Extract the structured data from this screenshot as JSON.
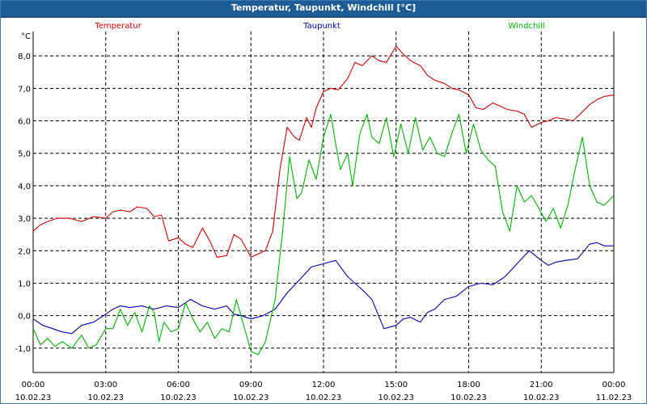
{
  "window": {
    "title": "Temperatur, Taupunkt, Windchill [°C]"
  },
  "chart_data": {
    "type": "line",
    "title": "Temperatur, Taupunkt, Windchill [°C]",
    "ylabel": "°C",
    "ylim": [
      -1.75,
      8.75
    ],
    "xlim": [
      0,
      24
    ],
    "grid": true,
    "y_ticks": [
      "8,0",
      "7,0",
      "6,0",
      "5,0",
      "4,0",
      "3,0",
      "2,0",
      "1,0",
      "0,0",
      "-1,0"
    ],
    "y_tick_values": [
      8,
      7,
      6,
      5,
      4,
      3,
      2,
      1,
      0,
      -1
    ],
    "x_ticks": [
      {
        "time": "00:00",
        "date": "10.02.23",
        "hour": 0
      },
      {
        "time": "03:00",
        "date": "10.02.23",
        "hour": 3
      },
      {
        "time": "06:00",
        "date": "10.02.23",
        "hour": 6
      },
      {
        "time": "09:00",
        "date": "10.02.23",
        "hour": 9
      },
      {
        "time": "12:00",
        "date": "10.02.23",
        "hour": 12
      },
      {
        "time": "15:00",
        "date": "10.02.23",
        "hour": 15
      },
      {
        "time": "18:00",
        "date": "10.02.23",
        "hour": 18
      },
      {
        "time": "21:00",
        "date": "10.02.23",
        "hour": 21
      },
      {
        "time": "00:00",
        "date": "11.02.23",
        "hour": 24
      }
    ],
    "series": [
      {
        "name": "Temperatur",
        "color": "#d40000",
        "x": [
          0,
          0.3,
          0.6,
          1,
          1.5,
          2,
          2.5,
          3,
          3.3,
          3.6,
          4,
          4.3,
          4.7,
          5,
          5.3,
          5.6,
          6,
          6.3,
          6.6,
          7,
          7.3,
          7.6,
          8,
          8.3,
          8.6,
          9,
          9.3,
          9.6,
          9.9,
          10.2,
          10.5,
          10.8,
          11,
          11.3,
          11.5,
          11.7,
          12,
          12.3,
          12.6,
          13,
          13.3,
          13.6,
          14,
          14.3,
          14.6,
          15,
          15.3,
          15.6,
          16,
          16.3,
          16.6,
          17,
          17.3,
          17.6,
          18,
          18.3,
          18.6,
          19,
          19.3,
          19.6,
          20,
          20.3,
          20.6,
          21,
          21.3,
          21.6,
          22,
          22.3,
          22.6,
          23,
          23.3,
          23.6,
          24
        ],
        "values": [
          2.6,
          2.8,
          2.9,
          3.0,
          3.0,
          2.9,
          3.05,
          3.0,
          3.2,
          3.25,
          3.2,
          3.35,
          3.3,
          3.05,
          3.1,
          2.3,
          2.4,
          2.2,
          2.1,
          2.7,
          2.3,
          1.8,
          1.85,
          2.5,
          2.35,
          1.8,
          1.9,
          2.0,
          2.6,
          4.5,
          5.8,
          5.5,
          5.4,
          6.1,
          5.8,
          6.4,
          6.9,
          7.0,
          6.95,
          7.3,
          7.8,
          7.7,
          8.0,
          7.85,
          7.8,
          8.3,
          8.05,
          7.85,
          7.7,
          7.4,
          7.25,
          7.15,
          7.0,
          6.95,
          6.8,
          6.4,
          6.35,
          6.55,
          6.45,
          6.35,
          6.3,
          6.2,
          5.8,
          5.95,
          6.0,
          6.1,
          6.05,
          6.0,
          6.2,
          6.5,
          6.65,
          6.75,
          6.8
        ]
      },
      {
        "name": "Taupunkt",
        "color": "#0000b4",
        "x": [
          0,
          0.4,
          0.8,
          1.2,
          1.6,
          2,
          2.5,
          3,
          3.3,
          3.6,
          4,
          4.5,
          5,
          5.5,
          6,
          6.5,
          7,
          7.5,
          8,
          8.3,
          8.6,
          9,
          9.5,
          10,
          10.5,
          11,
          11.5,
          12,
          12.5,
          13,
          13.3,
          13.6,
          14,
          14.5,
          15,
          15.3,
          15.6,
          16,
          16.3,
          16.6,
          17,
          17.5,
          18,
          18.5,
          19,
          19.5,
          20,
          20.5,
          21,
          21.3,
          21.6,
          22,
          22.5,
          23,
          23.3,
          23.6,
          24
        ],
        "values": [
          -0.1,
          -0.3,
          -0.4,
          -0.5,
          -0.55,
          -0.3,
          -0.2,
          0.05,
          0.2,
          0.3,
          0.25,
          0.3,
          0.2,
          0.3,
          0.25,
          0.5,
          0.3,
          0.2,
          0.3,
          0.05,
          0.0,
          -0.1,
          0.0,
          0.2,
          0.7,
          1.1,
          1.5,
          1.6,
          1.7,
          1.2,
          1.0,
          0.8,
          0.5,
          -0.4,
          -0.3,
          -0.1,
          -0.05,
          -0.2,
          0.1,
          0.2,
          0.5,
          0.6,
          0.9,
          1.0,
          0.95,
          1.2,
          1.6,
          2.0,
          1.7,
          1.55,
          1.65,
          1.7,
          1.75,
          2.2,
          2.25,
          2.15,
          2.15
        ]
      },
      {
        "name": "Windchill",
        "color": "#00b400",
        "x": [
          0,
          0.3,
          0.6,
          0.9,
          1.2,
          1.6,
          2,
          2.3,
          2.6,
          3,
          3.3,
          3.6,
          3.9,
          4.2,
          4.5,
          4.8,
          5,
          5.2,
          5.4,
          5.7,
          6,
          6.3,
          6.6,
          6.9,
          7.2,
          7.5,
          7.8,
          8.1,
          8.4,
          8.7,
          9,
          9.3,
          9.6,
          10,
          10.3,
          10.6,
          10.9,
          11.1,
          11.4,
          11.7,
          12,
          12.3,
          12.5,
          12.7,
          13,
          13.2,
          13.5,
          13.8,
          14,
          14.3,
          14.6,
          14.9,
          15.2,
          15.5,
          15.8,
          16.1,
          16.4,
          16.7,
          17,
          17.3,
          17.6,
          17.9,
          18.2,
          18.5,
          18.8,
          19.1,
          19.4,
          19.7,
          20,
          20.3,
          20.6,
          20.9,
          21.2,
          21.5,
          21.8,
          22.1,
          22.4,
          22.7,
          23,
          23.3,
          23.6,
          24
        ],
        "values": [
          -0.4,
          -0.9,
          -0.7,
          -0.95,
          -0.8,
          -1.0,
          -0.6,
          -1.0,
          -0.9,
          -0.4,
          -0.4,
          0.2,
          -0.3,
          0.1,
          -0.5,
          0.3,
          0.1,
          -0.8,
          -0.2,
          -0.5,
          -0.4,
          0.4,
          -0.1,
          -0.5,
          -0.2,
          -0.7,
          -0.4,
          -0.5,
          0.5,
          -0.3,
          -1.1,
          -1.2,
          -0.8,
          0.5,
          2.5,
          4.9,
          3.6,
          3.8,
          4.8,
          4.2,
          5.5,
          6.2,
          5.3,
          4.5,
          5.0,
          4.0,
          5.6,
          6.2,
          5.5,
          5.3,
          6.1,
          4.9,
          5.9,
          5.0,
          6.1,
          5.1,
          5.5,
          5.0,
          4.9,
          5.6,
          6.2,
          5.0,
          5.9,
          5.1,
          4.8,
          4.6,
          3.2,
          2.6,
          4.0,
          3.5,
          3.7,
          3.3,
          2.9,
          3.3,
          2.7,
          3.4,
          4.5,
          5.5,
          4.0,
          3.5,
          3.4,
          3.7
        ]
      }
    ]
  }
}
